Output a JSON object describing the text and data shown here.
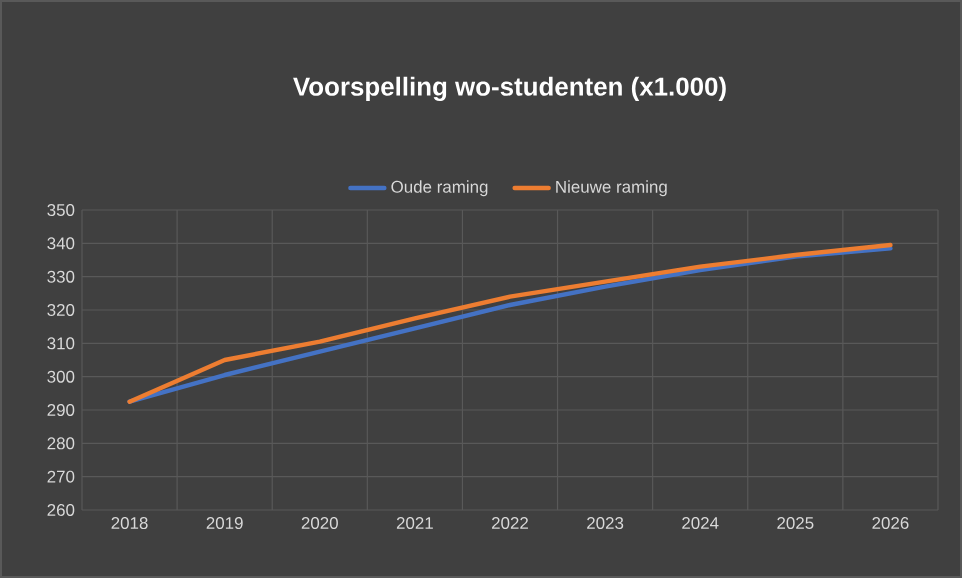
{
  "chart_data": {
    "type": "line",
    "title": "Voorspelling wo-studenten (x1.000)",
    "categories": [
      "2018",
      "2019",
      "2020",
      "2021",
      "2022",
      "2023",
      "2024",
      "2025",
      "2026"
    ],
    "series": [
      {
        "name": "Oude raming",
        "color": "#4472c4",
        "values": [
          292.5,
          300.5,
          307.5,
          314.5,
          321.5,
          327,
          332,
          336,
          338.5
        ]
      },
      {
        "name": "Nieuwe raming",
        "color": "#ed7d31",
        "values": [
          292.5,
          305,
          310.5,
          317.5,
          324,
          328.5,
          333,
          336.5,
          339.5
        ]
      }
    ],
    "ylim": [
      260,
      350
    ],
    "yticks": [
      260,
      270,
      280,
      290,
      300,
      310,
      320,
      330,
      340,
      350
    ],
    "grid": true,
    "legend": "top",
    "marker": "none",
    "line_style": "solid"
  }
}
